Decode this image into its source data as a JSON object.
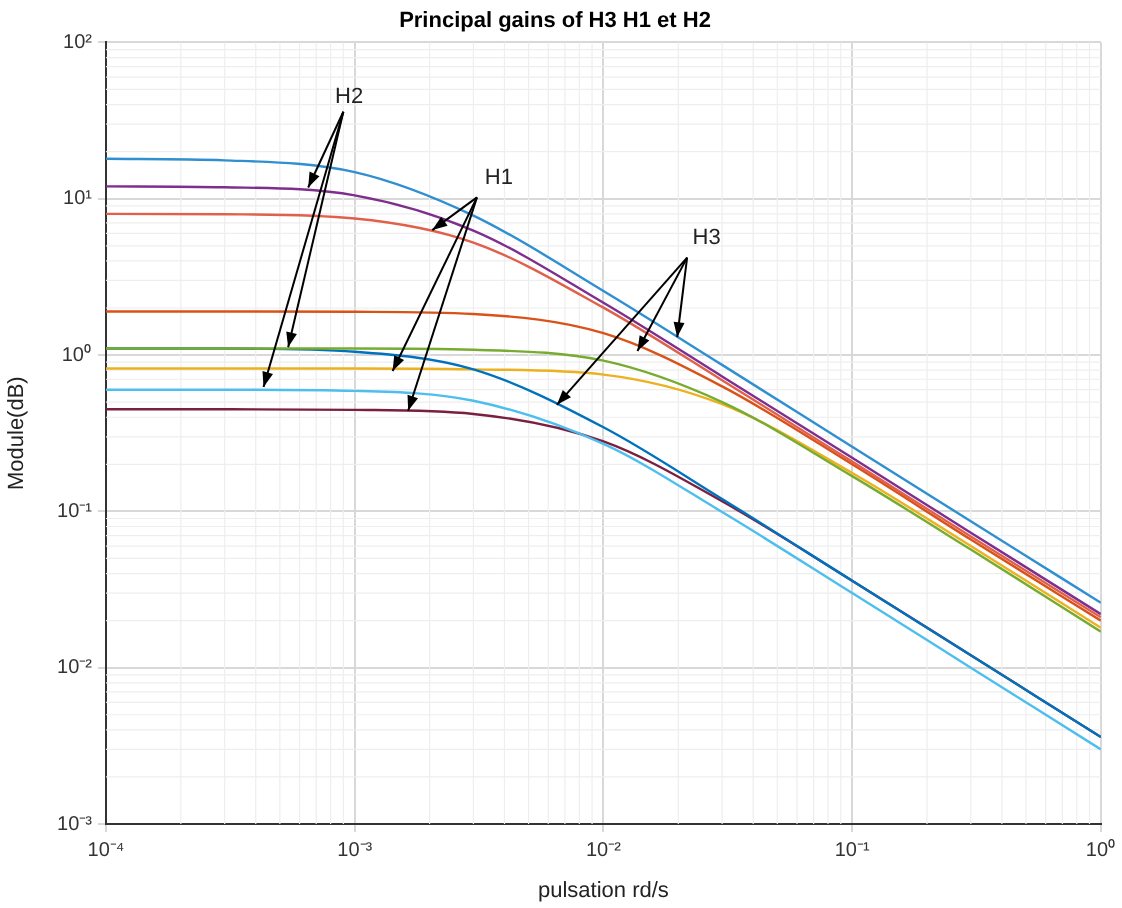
{
  "chart_data": {
    "type": "line",
    "title": "Principal gains of H3 H1 et H2",
    "xlabel": "pulsation rd/s",
    "ylabel": "Module(dB)",
    "x": [
      0.0001,
      0.0003,
      0.001,
      0.003,
      0.01,
      0.03,
      0.1,
      0.3,
      1
    ],
    "series": [
      {
        "color": "#2f8fd0",
        "values": [
          18,
          17.6,
          14.8,
          7.8,
          2.57,
          0.865,
          0.259,
          0.0864,
          0.026
        ]
      },
      {
        "color": "#7e2f8e",
        "values": [
          12,
          11.84,
          10.5,
          6.25,
          2.16,
          0.73,
          0.22,
          0.073,
          0.022
        ]
      },
      {
        "color": "#e0604a",
        "values": [
          8,
          7.95,
          7.47,
          5.24,
          2.01,
          0.69,
          0.208,
          0.069,
          0.021
        ]
      },
      {
        "color": "#d95319",
        "values": [
          1.9,
          1.9,
          1.89,
          1.83,
          1.38,
          0.63,
          0.2,
          0.066,
          0.02
        ]
      },
      {
        "color": "#77ac30",
        "values": [
          1.1,
          1.1,
          1.1,
          1.08,
          0.92,
          0.5,
          0.168,
          0.057,
          0.017
        ]
      },
      {
        "color": "#0072bd",
        "values": [
          1.1,
          1.1,
          1.05,
          0.81,
          0.345,
          0.12,
          0.036,
          0.012,
          0.0036
        ]
      },
      {
        "color": "#edb120",
        "values": [
          0.82,
          0.82,
          0.82,
          0.81,
          0.75,
          0.485,
          0.176,
          0.06,
          0.018
        ]
      },
      {
        "color": "#4dbeee",
        "values": [
          0.6,
          0.6,
          0.59,
          0.51,
          0.27,
          0.099,
          0.03,
          0.01,
          0.003
        ]
      },
      {
        "color": "#7a1f3f",
        "values": [
          0.45,
          0.45,
          0.446,
          0.42,
          0.28,
          0.116,
          0.036,
          0.012,
          0.0036
        ]
      }
    ],
    "log": "xy",
    "grid": true,
    "legend": false,
    "marker": "none",
    "line_style": "solid",
    "xlim": [
      0.0001,
      1
    ],
    "ylim": [
      0.001,
      100
    ],
    "xticks": [
      {
        "value": 0.0001,
        "label": "10⁻⁴"
      },
      {
        "value": 0.001,
        "label": "10⁻³"
      },
      {
        "value": 0.01,
        "label": "10⁻²"
      },
      {
        "value": 0.1,
        "label": "10⁻¹"
      },
      {
        "value": 1,
        "label": "10⁰"
      }
    ],
    "yticks": [
      {
        "value": 0.001,
        "label": "10⁻³"
      },
      {
        "value": 0.01,
        "label": "10⁻²"
      },
      {
        "value": 0.1,
        "label": "10⁻¹"
      },
      {
        "value": 1,
        "label": "10⁰"
      },
      {
        "value": 10,
        "label": "10¹"
      },
      {
        "value": 100,
        "label": "10²"
      }
    ],
    "annotations": [
      {
        "text": "H2",
        "x": 0.00065,
        "y": 11.8
      },
      {
        "text": "H1",
        "x": 0.00205,
        "y": 6.3
      },
      {
        "text": "H3",
        "x": 0.0198,
        "y": 1.3
      }
    ]
  }
}
